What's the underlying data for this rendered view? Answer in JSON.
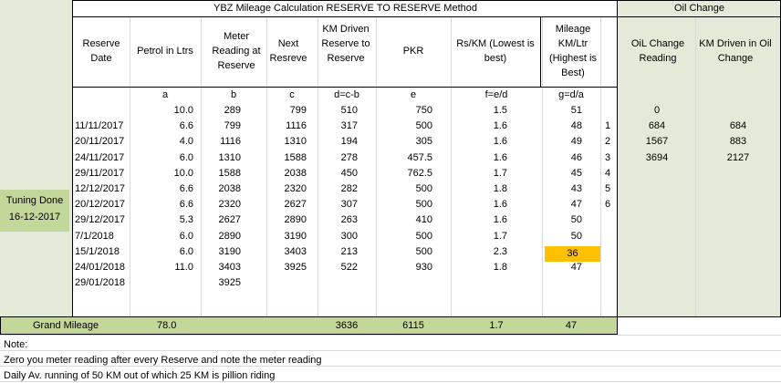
{
  "title": "YBZ Mileage Calculation RESERVE TO RESERVE Method",
  "oil_title": "Oil Change",
  "headers": {
    "reserve_date": "Reserve Date",
    "petrol": "Petrol in Ltrs",
    "meter": "Meter Reading at Reserve",
    "next": "Next Resreve",
    "km_driven": "KM Driven Reserve to Reserve",
    "pkr": "PKR",
    "rs_km": "Rs/KM (Lowest is best)",
    "mileage": "Mileage KM/Ltr (Highest is Best)",
    "oil_reading": "OiL Change Reading",
    "oil_km": "KM Driven in Oil Change"
  },
  "formula_row": [
    "a",
    "b",
    "c",
    "d=c-b",
    "e",
    "f=e/d",
    "g=d/a"
  ],
  "rows": [
    {
      "date": "",
      "petrol": "10.0",
      "meter": "289",
      "next": "799",
      "km": "510",
      "pkr": "750",
      "rskm": "1.5",
      "mileage": "51"
    },
    {
      "date": "11/11/2017",
      "petrol": "6.6",
      "meter": "799",
      "next": "1116",
      "km": "317",
      "pkr": "500",
      "rskm": "1.6",
      "mileage": "48"
    },
    {
      "date": "20/11/2017",
      "petrol": "4.0",
      "meter": "1116",
      "next": "1310",
      "km": "194",
      "pkr": "305",
      "rskm": "1.6",
      "mileage": "49"
    },
    {
      "date": "24/11/2017",
      "petrol": "6.0",
      "meter": "1310",
      "next": "1588",
      "km": "278",
      "pkr": "457.5",
      "rskm": "1.6",
      "mileage": "46"
    },
    {
      "date": "29/11/2017",
      "petrol": "10.0",
      "meter": "1588",
      "next": "2038",
      "km": "450",
      "pkr": "762.5",
      "rskm": "1.7",
      "mileage": "45"
    },
    {
      "date": "12/12/2017",
      "petrol": "6.6",
      "meter": "2038",
      "next": "2320",
      "km": "282",
      "pkr": "500",
      "rskm": "1.8",
      "mileage": "43"
    },
    {
      "date": "20/12/2017",
      "petrol": "6.6",
      "meter": "2320",
      "next": "2627",
      "km": "307",
      "pkr": "500",
      "rskm": "1.6",
      "mileage": "47"
    },
    {
      "date": "29/12/2017",
      "petrol": "5.3",
      "meter": "2627",
      "next": "2890",
      "km": "263",
      "pkr": "410",
      "rskm": "1.6",
      "mileage": "50"
    },
    {
      "date": "7/1/2018",
      "petrol": "6.0",
      "meter": "2890",
      "next": "3190",
      "km": "300",
      "pkr": "500",
      "rskm": "1.7",
      "mileage": "50"
    },
    {
      "date": "15/1/2018",
      "petrol": "6.0",
      "meter": "3190",
      "next": "3403",
      "km": "213",
      "pkr": "500",
      "rskm": "2.3",
      "mileage": "36"
    },
    {
      "date": "24/01/2018",
      "petrol": "11.0",
      "meter": "3403",
      "next": "3925",
      "km": "522",
      "pkr": "930",
      "rskm": "1.8",
      "mileage": "47"
    },
    {
      "date": "29/01/2018",
      "petrol": "",
      "meter": "3925",
      "next": "",
      "km": "",
      "pkr": "",
      "rskm": "",
      "mileage": ""
    }
  ],
  "oil_rows": [
    {
      "idx": "",
      "reading": "0",
      "km": ""
    },
    {
      "idx": "1",
      "reading": "684",
      "km": "684"
    },
    {
      "idx": "2",
      "reading": "1567",
      "km": "883"
    },
    {
      "idx": "3",
      "reading": "3694",
      "km": "2127"
    },
    {
      "idx": "4",
      "reading": "",
      "km": ""
    },
    {
      "idx": "5",
      "reading": "",
      "km": ""
    },
    {
      "idx": "6",
      "reading": "",
      "km": ""
    }
  ],
  "tuning": {
    "line1": "Tuning Done",
    "line2": "16-12-2017"
  },
  "grand": {
    "label": "Grand Mileage",
    "petrol": "78.0",
    "km": "3636",
    "pkr": "6115",
    "rskm": "1.7",
    "mileage": "47"
  },
  "notes": [
    "Note:",
    "Zero you meter reading after every Reserve and note the meter reading",
    "Daily Av. running of 50 KM out of which 25 KM is pillion riding"
  ],
  "colors": {
    "green_light": "#e3ead7",
    "green_dark": "#c4d79b",
    "highlight": "#ffc000"
  }
}
